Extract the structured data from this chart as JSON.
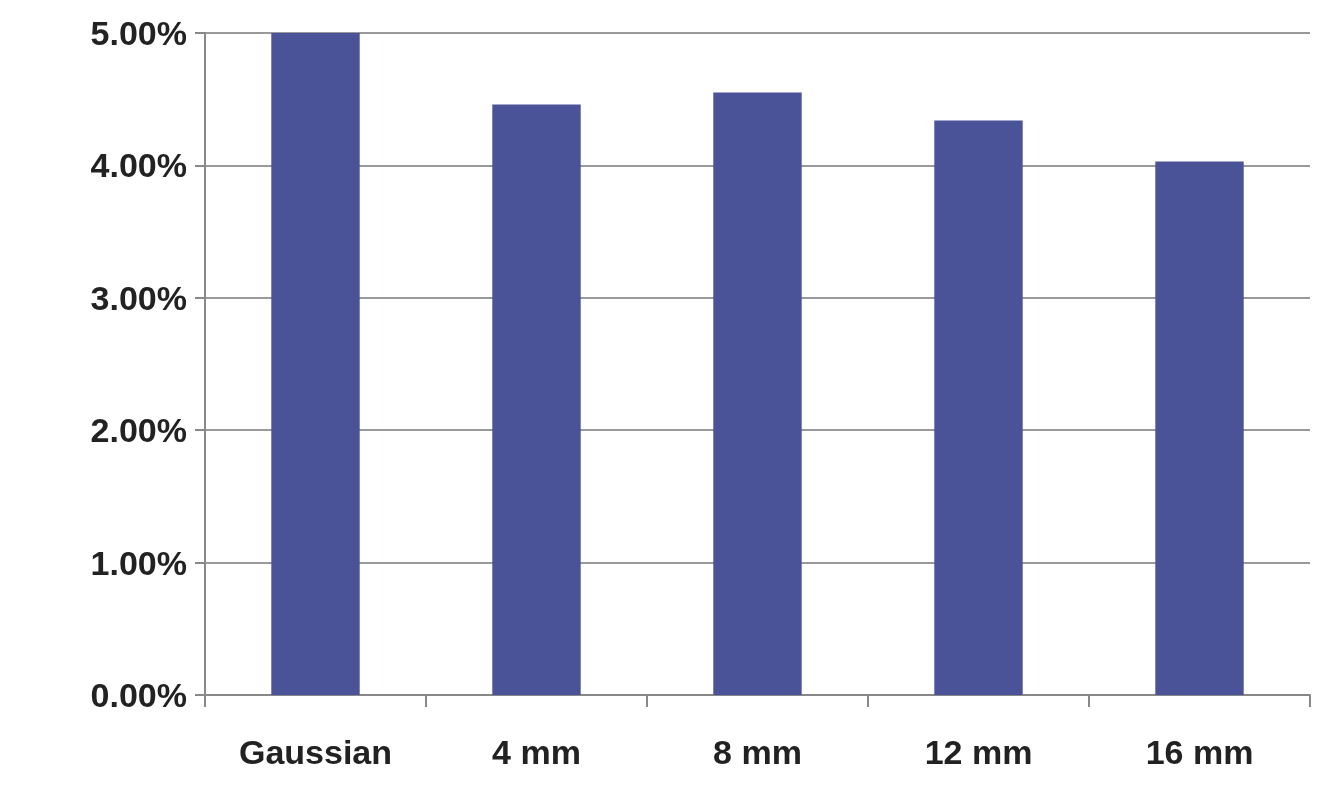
{
  "chart_data": {
    "type": "bar",
    "categories": [
      "Gaussian",
      "4 mm",
      "8 mm",
      "12 mm",
      "16 mm"
    ],
    "values": [
      5.0,
      4.46,
      4.55,
      4.34,
      4.03
    ],
    "color": "#4a5298",
    "ylim": [
      0,
      5
    ],
    "yticks": [
      {
        "value": 0,
        "label": "0.00%"
      },
      {
        "value": 1,
        "label": "1.00%"
      },
      {
        "value": 2,
        "label": "2.00%"
      },
      {
        "value": 3,
        "label": "3.00%"
      },
      {
        "value": 4,
        "label": "4.00%"
      },
      {
        "value": 5,
        "label": "5.00%"
      }
    ],
    "grid": "y"
  }
}
